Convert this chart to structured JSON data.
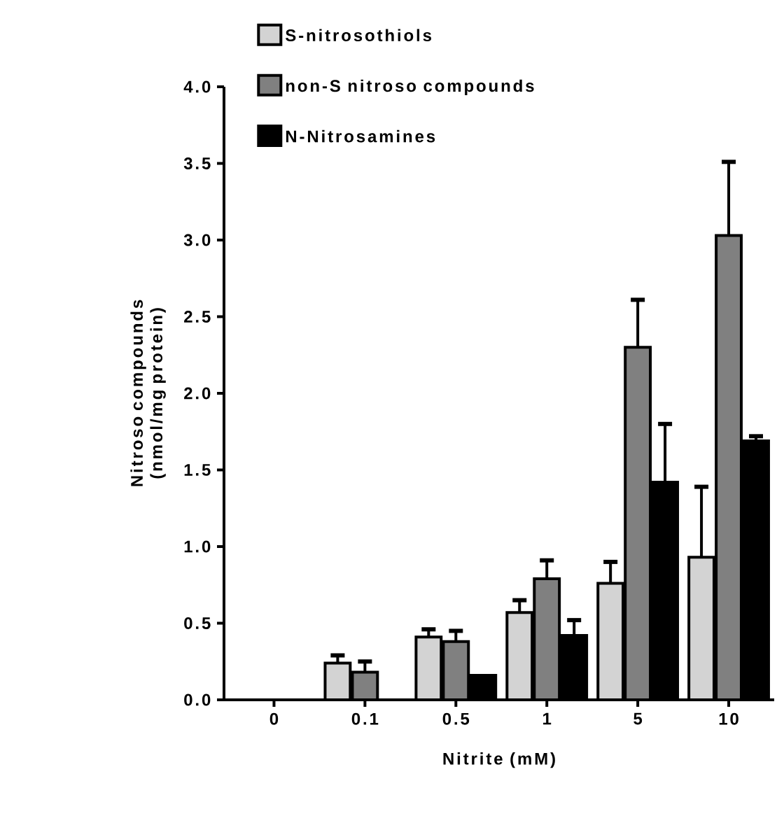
{
  "chart_data": {
    "type": "bar",
    "xlabel": "Nitrite (mM)",
    "ylabel": "Nitroso compounds (nmol/mg protein)",
    "categories": [
      "0",
      "0.1",
      "0.5",
      "1",
      "5",
      "10"
    ],
    "series": [
      {
        "name": "S-nitrosothiols",
        "color": "#d3d3d3",
        "values": [
          null,
          0.24,
          0.41,
          0.57,
          0.76,
          0.93
        ],
        "errors": [
          null,
          [
            0.24,
            0.29
          ],
          [
            0.41,
            0.46
          ],
          [
            0.57,
            0.65
          ],
          [
            0.76,
            0.9
          ],
          [
            0.93,
            1.39
          ]
        ]
      },
      {
        "name": "non-S nitroso compounds",
        "color": "#808080",
        "values": [
          null,
          0.18,
          0.38,
          0.79,
          2.3,
          3.03
        ],
        "errors": [
          null,
          [
            0.18,
            0.25
          ],
          [
            0.38,
            0.45
          ],
          [
            0.79,
            0.91
          ],
          [
            2.3,
            2.61
          ],
          [
            3.03,
            3.51
          ]
        ]
      },
      {
        "name": "N-Nitrosamines",
        "color": "#000000",
        "values": [
          null,
          null,
          0.16,
          0.42,
          1.42,
          1.69
        ],
        "errors": [
          null,
          null,
          null,
          [
            0.42,
            0.52
          ],
          [
            1.42,
            1.8
          ],
          [
            1.69,
            1.72
          ]
        ]
      }
    ],
    "ylim": [
      0,
      4
    ],
    "yticks": [
      {
        "value": 0,
        "label": "0.0"
      },
      0.5,
      {
        "value": 1,
        "label": "1.0"
      },
      1.5,
      {
        "value": 2,
        "label": "2.0"
      },
      2.5,
      {
        "value": 3,
        "label": "3.0"
      },
      3.5,
      {
        "value": 4,
        "label": "4.0"
      }
    ],
    "legend": "top left"
  }
}
